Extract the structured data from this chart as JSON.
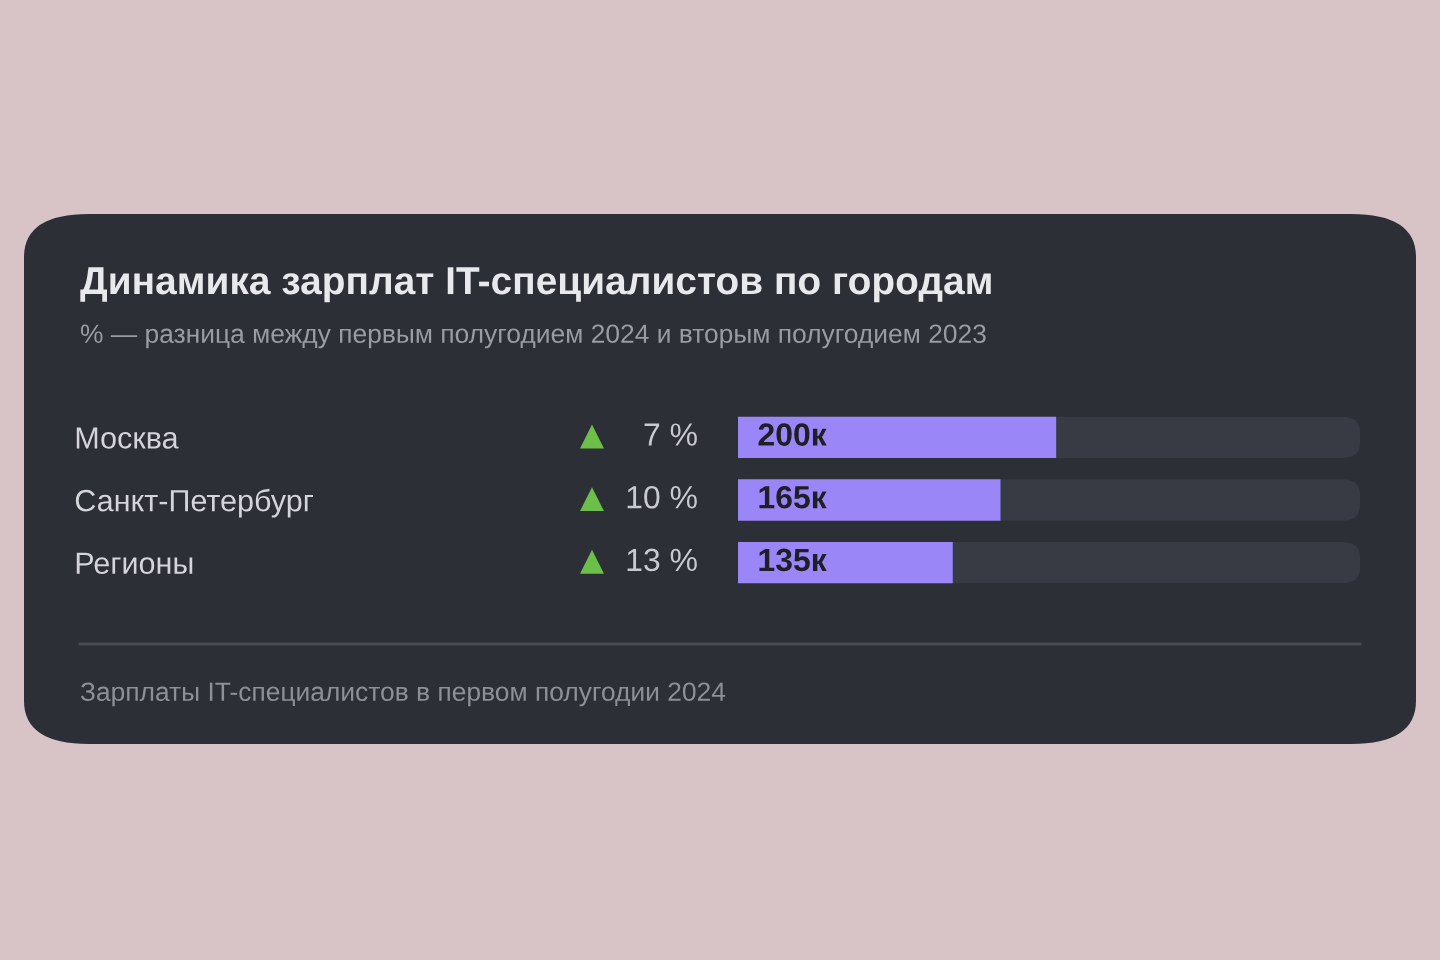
{
  "chart_data": {
    "type": "bar",
    "orientation": "horizontal",
    "title": "Динамика зарплат IT-специалистов по городам",
    "subtitle": "% — разница между первым полугодием 2024 и вторым полугодием 2023",
    "categories": [
      "Москва",
      "Санкт-Петербург",
      "Регионы"
    ],
    "values": [
      200,
      165,
      135
    ],
    "value_labels": [
      "200к",
      "165к",
      "135к"
    ],
    "color": "#9b86f7",
    "xlim": [
      0,
      391
    ],
    "annotations": [
      "7 %",
      "10 %",
      "13 %",
      "Зарплаты IT-специалистов в первом полугодии 2024"
    ]
  }
}
